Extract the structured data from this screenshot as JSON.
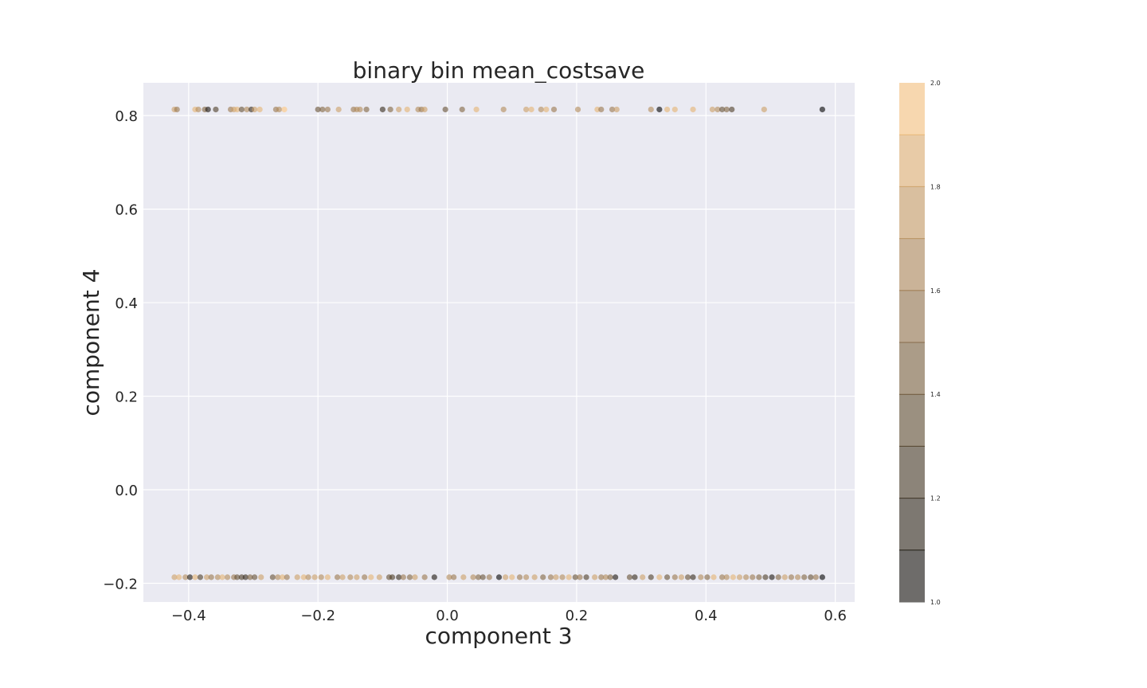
{
  "chart_data": {
    "type": "scatter",
    "title": "binary bin mean_costsave",
    "xlabel": "component 3",
    "ylabel": "component 4",
    "xlim": [
      -0.47,
      0.63
    ],
    "ylim": [
      -0.24,
      0.87
    ],
    "xticks": [
      -0.4,
      -0.2,
      0.0,
      0.2,
      0.4,
      0.6
    ],
    "xtick_labels": [
      "−0.4",
      "−0.2",
      "0.0",
      "0.2",
      "0.4",
      "0.6"
    ],
    "yticks": [
      -0.2,
      0.0,
      0.2,
      0.4,
      0.6,
      0.8
    ],
    "ytick_labels": [
      "−0.2",
      "0.0",
      "0.2",
      "0.4",
      "0.6",
      "0.8"
    ],
    "grid": true,
    "point_alpha": 0.6,
    "colorbar": {
      "min": 1.0,
      "max": 2.0,
      "ticks": [
        1.0,
        1.2,
        1.4,
        1.6,
        1.8,
        2.0
      ],
      "tick_labels": [
        "1.0",
        "1.2",
        "1.4",
        "1.6",
        "1.8",
        "2.0"
      ],
      "colormap": "copper",
      "color_low": "#000000",
      "color_high": "#ffc77f"
    },
    "series": [
      {
        "y": 0.813,
        "points": [
          [
            -0.422,
            1.8
          ],
          [
            -0.418,
            1.6
          ],
          [
            -0.39,
            1.9
          ],
          [
            -0.385,
            1.7
          ],
          [
            -0.375,
            1.5
          ],
          [
            -0.37,
            1.1
          ],
          [
            -0.358,
            1.3
          ],
          [
            -0.335,
            1.6
          ],
          [
            -0.33,
            1.8
          ],
          [
            -0.325,
            1.9
          ],
          [
            -0.318,
            1.4
          ],
          [
            -0.31,
            1.7
          ],
          [
            -0.303,
            1.2
          ],
          [
            -0.298,
            1.8
          ],
          [
            -0.29,
            1.9
          ],
          [
            -0.265,
            1.6
          ],
          [
            -0.26,
            1.7
          ],
          [
            -0.252,
            2.0
          ],
          [
            -0.2,
            1.4
          ],
          [
            -0.193,
            1.5
          ],
          [
            -0.185,
            1.6
          ],
          [
            -0.168,
            1.8
          ],
          [
            -0.145,
            1.6
          ],
          [
            -0.14,
            1.7
          ],
          [
            -0.135,
            1.7
          ],
          [
            -0.125,
            1.5
          ],
          [
            -0.1,
            1.2
          ],
          [
            -0.088,
            1.5
          ],
          [
            -0.075,
            1.8
          ],
          [
            -0.062,
            1.9
          ],
          [
            -0.045,
            1.7
          ],
          [
            -0.04,
            1.6
          ],
          [
            -0.035,
            1.8
          ],
          [
            -0.003,
            1.4
          ],
          [
            0.023,
            1.5
          ],
          [
            0.045,
            1.9
          ],
          [
            0.087,
            1.7
          ],
          [
            0.122,
            1.8
          ],
          [
            0.13,
            1.9
          ],
          [
            0.145,
            1.7
          ],
          [
            0.153,
            1.9
          ],
          [
            0.165,
            1.6
          ],
          [
            0.202,
            1.7
          ],
          [
            0.232,
            1.9
          ],
          [
            0.238,
            1.6
          ],
          [
            0.255,
            1.6
          ],
          [
            0.262,
            1.8
          ],
          [
            0.315,
            1.7
          ],
          [
            0.328,
            1.0
          ],
          [
            0.34,
            1.9
          ],
          [
            0.352,
            1.9
          ],
          [
            0.38,
            1.9
          ],
          [
            0.41,
            1.8
          ],
          [
            0.418,
            1.7
          ],
          [
            0.425,
            1.4
          ],
          [
            0.432,
            1.5
          ],
          [
            0.44,
            1.3
          ],
          [
            0.49,
            1.8
          ],
          [
            0.58,
            1.0
          ]
        ]
      },
      {
        "y": -0.187,
        "points": [
          [
            -0.422,
            1.8
          ],
          [
            -0.415,
            1.9
          ],
          [
            -0.405,
            1.7
          ],
          [
            -0.398,
            1.1
          ],
          [
            -0.39,
            1.9
          ],
          [
            -0.382,
            1.3
          ],
          [
            -0.372,
            1.8
          ],
          [
            -0.365,
            1.6
          ],
          [
            -0.355,
            1.7
          ],
          [
            -0.348,
            1.9
          ],
          [
            -0.34,
            1.7
          ],
          [
            -0.33,
            1.6
          ],
          [
            -0.325,
            1.4
          ],
          [
            -0.318,
            1.3
          ],
          [
            -0.312,
            1.2
          ],
          [
            -0.305,
            1.5
          ],
          [
            -0.298,
            1.4
          ],
          [
            -0.288,
            1.8
          ],
          [
            -0.27,
            1.4
          ],
          [
            -0.262,
            1.7
          ],
          [
            -0.255,
            1.9
          ],
          [
            -0.248,
            1.6
          ],
          [
            -0.232,
            1.8
          ],
          [
            -0.222,
            1.9
          ],
          [
            -0.215,
            1.7
          ],
          [
            -0.205,
            1.8
          ],
          [
            -0.195,
            1.7
          ],
          [
            -0.185,
            1.9
          ],
          [
            -0.17,
            1.6
          ],
          [
            -0.162,
            1.8
          ],
          [
            -0.15,
            1.7
          ],
          [
            -0.14,
            1.8
          ],
          [
            -0.128,
            1.6
          ],
          [
            -0.118,
            1.9
          ],
          [
            -0.105,
            1.8
          ],
          [
            -0.09,
            1.4
          ],
          [
            -0.085,
            1.3
          ],
          [
            -0.075,
            1.2
          ],
          [
            -0.068,
            1.6
          ],
          [
            -0.058,
            1.5
          ],
          [
            -0.05,
            1.8
          ],
          [
            -0.035,
            1.6
          ],
          [
            -0.02,
            1.1
          ],
          [
            0.003,
            1.7
          ],
          [
            0.01,
            1.6
          ],
          [
            0.025,
            1.8
          ],
          [
            0.04,
            1.7
          ],
          [
            0.048,
            1.5
          ],
          [
            0.055,
            1.4
          ],
          [
            0.065,
            1.6
          ],
          [
            0.08,
            1.0
          ],
          [
            0.09,
            1.8
          ],
          [
            0.1,
            1.9
          ],
          [
            0.112,
            1.6
          ],
          [
            0.122,
            1.7
          ],
          [
            0.135,
            1.8
          ],
          [
            0.148,
            1.5
          ],
          [
            0.16,
            1.6
          ],
          [
            0.168,
            1.8
          ],
          [
            0.178,
            1.7
          ],
          [
            0.188,
            1.9
          ],
          [
            0.198,
            1.4
          ],
          [
            0.205,
            1.6
          ],
          [
            0.215,
            1.3
          ],
          [
            0.228,
            1.8
          ],
          [
            0.238,
            1.6
          ],
          [
            0.245,
            1.7
          ],
          [
            0.252,
            1.5
          ],
          [
            0.26,
            1.1
          ],
          [
            0.282,
            1.4
          ],
          [
            0.29,
            1.2
          ],
          [
            0.302,
            1.8
          ],
          [
            0.315,
            1.3
          ],
          [
            0.328,
            1.9
          ],
          [
            0.34,
            1.4
          ],
          [
            0.352,
            1.6
          ],
          [
            0.362,
            1.8
          ],
          [
            0.372,
            1.4
          ],
          [
            0.38,
            1.2
          ],
          [
            0.392,
            1.7
          ],
          [
            0.402,
            1.5
          ],
          [
            0.412,
            1.9
          ],
          [
            0.425,
            1.6
          ],
          [
            0.432,
            1.7
          ],
          [
            0.442,
            1.9
          ],
          [
            0.452,
            1.8
          ],
          [
            0.462,
            1.7
          ],
          [
            0.472,
            1.6
          ],
          [
            0.482,
            1.5
          ],
          [
            0.492,
            1.3
          ],
          [
            0.502,
            1.1
          ],
          [
            0.512,
            1.5
          ],
          [
            0.522,
            1.8
          ],
          [
            0.532,
            1.6
          ],
          [
            0.542,
            1.7
          ],
          [
            0.552,
            1.5
          ],
          [
            0.562,
            1.4
          ],
          [
            0.57,
            1.6
          ],
          [
            0.58,
            1.0
          ]
        ]
      }
    ]
  }
}
